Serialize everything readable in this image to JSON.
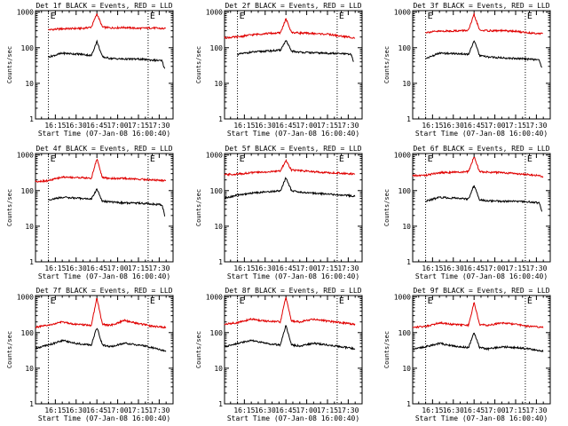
{
  "colors": {
    "events": "#000000",
    "lld": "#e00000",
    "axes": "#000000",
    "background": "#ffffff"
  },
  "chart_data": [
    {
      "type": "line",
      "title": "Det 1f BLACK = Events, RED = LLD",
      "xlabel": "Start Time (07-Jan-08 16:00:40)",
      "ylabel": "Counts/sec",
      "xticks": [
        "16:15",
        "16:30",
        "16:45",
        "17:00",
        "17:15",
        "17:30"
      ],
      "yticks": [
        "1",
        "10",
        "100",
        "1000"
      ],
      "yscale": "log",
      "ylim": [
        1,
        1100
      ],
      "xlim": [
        "16:00:40",
        "17:40"
      ],
      "markers": [
        "16:10",
        "17:22"
      ],
      "marker_labels": [
        "E",
        "E"
      ],
      "series": [
        {
          "color": "red",
          "x": [
            "16:10",
            "16:20",
            "16:35",
            "16:41",
            "16:45",
            "16:49",
            "16:55",
            "17:05",
            "17:15",
            "17:25",
            "17:35"
          ],
          "values": [
            320,
            340,
            350,
            380,
            900,
            380,
            360,
            370,
            350,
            360,
            340
          ]
        },
        {
          "color": "black",
          "x": [
            "16:10",
            "16:20",
            "16:35",
            "16:41",
            "16:45",
            "16:49",
            "16:55",
            "17:05",
            "17:15",
            "17:25",
            "17:32",
            "17:34"
          ],
          "values": [
            55,
            70,
            65,
            60,
            150,
            55,
            50,
            48,
            48,
            45,
            43,
            25
          ]
        }
      ]
    },
    {
      "type": "line",
      "title": "Det 2f BLACK = Events, RED = LLD",
      "xlabel": "Start Time (07-Jan-08 16:00:40)",
      "ylabel": "Counts/sec",
      "xticks": [
        "16:15",
        "16:30",
        "16:45",
        "17:00",
        "17:15",
        "17:30"
      ],
      "yticks": [
        "1",
        "10",
        "100",
        "1000"
      ],
      "yscale": "log",
      "ylim": [
        1,
        1100
      ],
      "xlim": [
        "16:00:40",
        "17:40"
      ],
      "markers": [
        "16:10",
        "17:22"
      ],
      "marker_labels": [
        "E",
        "E"
      ],
      "series": [
        {
          "color": "red",
          "x": [
            "16:00",
            "16:10",
            "16:20",
            "16:30",
            "16:41",
            "16:45",
            "16:49",
            "16:55",
            "17:05",
            "17:15",
            "17:25",
            "17:35"
          ],
          "values": [
            190,
            200,
            230,
            250,
            260,
            650,
            270,
            260,
            250,
            240,
            210,
            190
          ]
        },
        {
          "color": "black",
          "x": [
            "16:10",
            "16:20",
            "16:30",
            "16:41",
            "16:45",
            "16:49",
            "16:55",
            "17:05",
            "17:15",
            "17:25",
            "17:32",
            "17:34"
          ],
          "values": [
            65,
            75,
            80,
            85,
            160,
            80,
            75,
            72,
            70,
            68,
            65,
            40
          ]
        }
      ]
    },
    {
      "type": "line",
      "title": "Det 3f BLACK = Events, RED = LLD",
      "xlabel": "Start Time (07-Jan-08 16:00:40)",
      "ylabel": "Counts/sec",
      "xticks": [
        "16:15",
        "16:30",
        "16:45",
        "17:00",
        "17:15",
        "17:30"
      ],
      "yticks": [
        "1",
        "10",
        "100",
        "1000"
      ],
      "yscale": "log",
      "ylim": [
        1,
        1100
      ],
      "xlim": [
        "16:00:40",
        "17:40"
      ],
      "markers": [
        "16:10",
        "17:22"
      ],
      "marker_labels": [
        "E",
        "E"
      ],
      "series": [
        {
          "color": "red",
          "x": [
            "16:10",
            "16:20",
            "16:35",
            "16:41",
            "16:45",
            "16:49",
            "16:55",
            "17:05",
            "17:15",
            "17:25",
            "17:35"
          ],
          "values": [
            270,
            290,
            300,
            310,
            850,
            310,
            300,
            300,
            290,
            260,
            250
          ]
        },
        {
          "color": "black",
          "x": [
            "16:10",
            "16:20",
            "16:35",
            "16:41",
            "16:45",
            "16:49",
            "16:55",
            "17:05",
            "17:15",
            "17:25",
            "17:32",
            "17:34"
          ],
          "values": [
            50,
            70,
            68,
            65,
            160,
            60,
            55,
            52,
            50,
            48,
            45,
            27
          ]
        }
      ]
    },
    {
      "type": "line",
      "title": "Det 4f BLACK = Events, RED = LLD",
      "xlabel": "Start Time (07-Jan-08 16:00:40)",
      "ylabel": "Counts/sec",
      "xticks": [
        "16:15",
        "16:30",
        "16:45",
        "17:00",
        "17:15",
        "17:30"
      ],
      "yticks": [
        "1",
        "10",
        "100",
        "1000"
      ],
      "yscale": "log",
      "ylim": [
        1,
        1100
      ],
      "xlim": [
        "16:00:40",
        "17:40"
      ],
      "markers": [
        "16:10",
        "17:22"
      ],
      "marker_labels": [
        "E",
        "E"
      ],
      "series": [
        {
          "color": "red",
          "x": [
            "16:00",
            "16:10",
            "16:20",
            "16:35",
            "16:41",
            "16:45",
            "16:49",
            "16:55",
            "17:05",
            "17:15",
            "17:25",
            "17:35"
          ],
          "values": [
            180,
            190,
            240,
            230,
            220,
            800,
            230,
            220,
            220,
            210,
            200,
            190
          ]
        },
        {
          "color": "black",
          "x": [
            "16:10",
            "16:20",
            "16:35",
            "16:41",
            "16:45",
            "16:49",
            "16:55",
            "17:05",
            "17:15",
            "17:25",
            "17:32",
            "17:34"
          ],
          "values": [
            55,
            65,
            60,
            58,
            110,
            50,
            48,
            45,
            45,
            42,
            40,
            20
          ]
        }
      ]
    },
    {
      "type": "line",
      "title": "Det 5f BLACK = Events, RED = LLD",
      "xlabel": "Start Time (07-Jan-08 16:00:40)",
      "ylabel": "Counts/sec",
      "xticks": [
        "16:15",
        "16:30",
        "16:45",
        "17:00",
        "17:15",
        "17:30"
      ],
      "yticks": [
        "1",
        "10",
        "100",
        "1000"
      ],
      "yscale": "log",
      "ylim": [
        1,
        1100
      ],
      "xlim": [
        "16:00:40",
        "17:40"
      ],
      "markers": [
        "16:10",
        "17:22"
      ],
      "marker_labels": [
        "E",
        "E"
      ],
      "series": [
        {
          "color": "red",
          "x": [
            "16:00",
            "16:10",
            "16:20",
            "16:35",
            "16:41",
            "16:45",
            "16:49",
            "16:55",
            "17:05",
            "17:15",
            "17:25",
            "17:35"
          ],
          "values": [
            280,
            290,
            320,
            340,
            360,
            700,
            380,
            360,
            340,
            320,
            310,
            290
          ]
        },
        {
          "color": "black",
          "x": [
            "16:00",
            "16:10",
            "16:20",
            "16:35",
            "16:41",
            "16:45",
            "16:49",
            "16:55",
            "17:05",
            "17:15",
            "17:25",
            "17:35"
          ],
          "values": [
            60,
            75,
            85,
            95,
            100,
            230,
            100,
            90,
            85,
            80,
            75,
            70
          ]
        }
      ]
    },
    {
      "type": "line",
      "title": "Det 6f BLACK = Events, RED = LLD",
      "xlabel": "Start Time (07-Jan-08 16:00:40)",
      "ylabel": "Counts/sec",
      "xticks": [
        "16:15",
        "16:30",
        "16:45",
        "17:00",
        "17:15",
        "17:30"
      ],
      "yticks": [
        "1",
        "10",
        "100",
        "1000"
      ],
      "yscale": "log",
      "ylim": [
        1,
        1100
      ],
      "xlim": [
        "16:00:40",
        "17:40"
      ],
      "markers": [
        "16:10",
        "17:22"
      ],
      "marker_labels": [
        "E",
        "E"
      ],
      "series": [
        {
          "color": "red",
          "x": [
            "16:00",
            "16:10",
            "16:20",
            "16:35",
            "16:41",
            "16:45",
            "16:49",
            "16:55",
            "17:05",
            "17:15",
            "17:25",
            "17:35"
          ],
          "values": [
            260,
            270,
            320,
            330,
            340,
            900,
            340,
            330,
            320,
            300,
            280,
            250
          ]
        },
        {
          "color": "black",
          "x": [
            "16:10",
            "16:20",
            "16:35",
            "16:41",
            "16:45",
            "16:49",
            "16:55",
            "17:05",
            "17:15",
            "17:25",
            "17:32",
            "17:34"
          ],
          "values": [
            50,
            65,
            60,
            58,
            140,
            55,
            52,
            50,
            50,
            48,
            45,
            25
          ]
        }
      ]
    },
    {
      "type": "line",
      "title": "Det 7f BLACK = Events, RED = LLD",
      "xlabel": "Start Time (07-Jan-08 16:00:40)",
      "ylabel": "Counts/sec",
      "xticks": [
        "16:15",
        "16:30",
        "16:45",
        "17:00",
        "17:15",
        "17:30"
      ],
      "yticks": [
        "1",
        "10",
        "100",
        "1000"
      ],
      "yscale": "log",
      "ylim": [
        1,
        1100
      ],
      "xlim": [
        "16:00:40",
        "17:40"
      ],
      "markers": [
        "16:10",
        "17:22"
      ],
      "marker_labels": [
        "E",
        "E"
      ],
      "series": [
        {
          "color": "red",
          "x": [
            "16:00",
            "16:10",
            "16:20",
            "16:30",
            "16:41",
            "16:45",
            "16:49",
            "16:55",
            "17:05",
            "17:15",
            "17:25",
            "17:35"
          ],
          "values": [
            140,
            160,
            200,
            170,
            160,
            950,
            170,
            160,
            220,
            180,
            150,
            140
          ]
        },
        {
          "color": "black",
          "x": [
            "16:00",
            "16:10",
            "16:20",
            "16:30",
            "16:41",
            "16:45",
            "16:49",
            "16:55",
            "17:05",
            "17:15",
            "17:25",
            "17:35"
          ],
          "values": [
            35,
            45,
            60,
            50,
            45,
            140,
            45,
            40,
            50,
            45,
            38,
            30
          ]
        }
      ]
    },
    {
      "type": "line",
      "title": "Det 8f BLACK = Events, RED = LLD",
      "xlabel": "Start Time (07-Jan-08 16:00:40)",
      "ylabel": "Counts/sec",
      "xticks": [
        "16:15",
        "16:30",
        "16:45",
        "17:00",
        "17:15",
        "17:30"
      ],
      "yticks": [
        "1",
        "10",
        "100",
        "1000"
      ],
      "yscale": "log",
      "ylim": [
        1,
        1100
      ],
      "xlim": [
        "16:00:40",
        "17:40"
      ],
      "markers": [
        "16:10",
        "17:22"
      ],
      "marker_labels": [
        "E",
        "E"
      ],
      "series": [
        {
          "color": "red",
          "x": [
            "16:00",
            "16:10",
            "16:20",
            "16:30",
            "16:41",
            "16:45",
            "16:49",
            "16:55",
            "17:05",
            "17:15",
            "17:25",
            "17:35"
          ],
          "values": [
            170,
            190,
            240,
            210,
            200,
            1000,
            210,
            200,
            240,
            210,
            190,
            170
          ]
        },
        {
          "color": "black",
          "x": [
            "16:00",
            "16:10",
            "16:20",
            "16:30",
            "16:41",
            "16:45",
            "16:49",
            "16:55",
            "17:05",
            "17:15",
            "17:25",
            "17:35"
          ],
          "values": [
            40,
            50,
            60,
            50,
            45,
            160,
            45,
            42,
            50,
            45,
            40,
            35
          ]
        }
      ]
    },
    {
      "type": "line",
      "title": "Det 9f BLACK = Events, RED = LLD",
      "xlabel": "Start Time (07-Jan-08 16:00:40)",
      "ylabel": "Counts/sec",
      "xticks": [
        "16:15",
        "16:30",
        "16:45",
        "17:00",
        "17:15",
        "17:30"
      ],
      "yticks": [
        "1",
        "10",
        "100",
        "1000"
      ],
      "yscale": "log",
      "ylim": [
        1,
        1100
      ],
      "xlim": [
        "16:00:40",
        "17:40"
      ],
      "markers": [
        "16:10",
        "17:22"
      ],
      "marker_labels": [
        "E",
        "E"
      ],
      "series": [
        {
          "color": "red",
          "x": [
            "16:00",
            "16:10",
            "16:20",
            "16:30",
            "16:41",
            "16:45",
            "16:49",
            "16:55",
            "17:05",
            "17:15",
            "17:25",
            "17:35"
          ],
          "values": [
            140,
            150,
            190,
            170,
            160,
            700,
            170,
            160,
            190,
            170,
            150,
            140
          ]
        },
        {
          "color": "black",
          "x": [
            "16:00",
            "16:10",
            "16:20",
            "16:30",
            "16:41",
            "16:45",
            "16:49",
            "16:55",
            "17:05",
            "17:15",
            "17:25",
            "17:35"
          ],
          "values": [
            35,
            40,
            50,
            42,
            38,
            100,
            38,
            35,
            40,
            38,
            35,
            30
          ]
        }
      ]
    }
  ]
}
